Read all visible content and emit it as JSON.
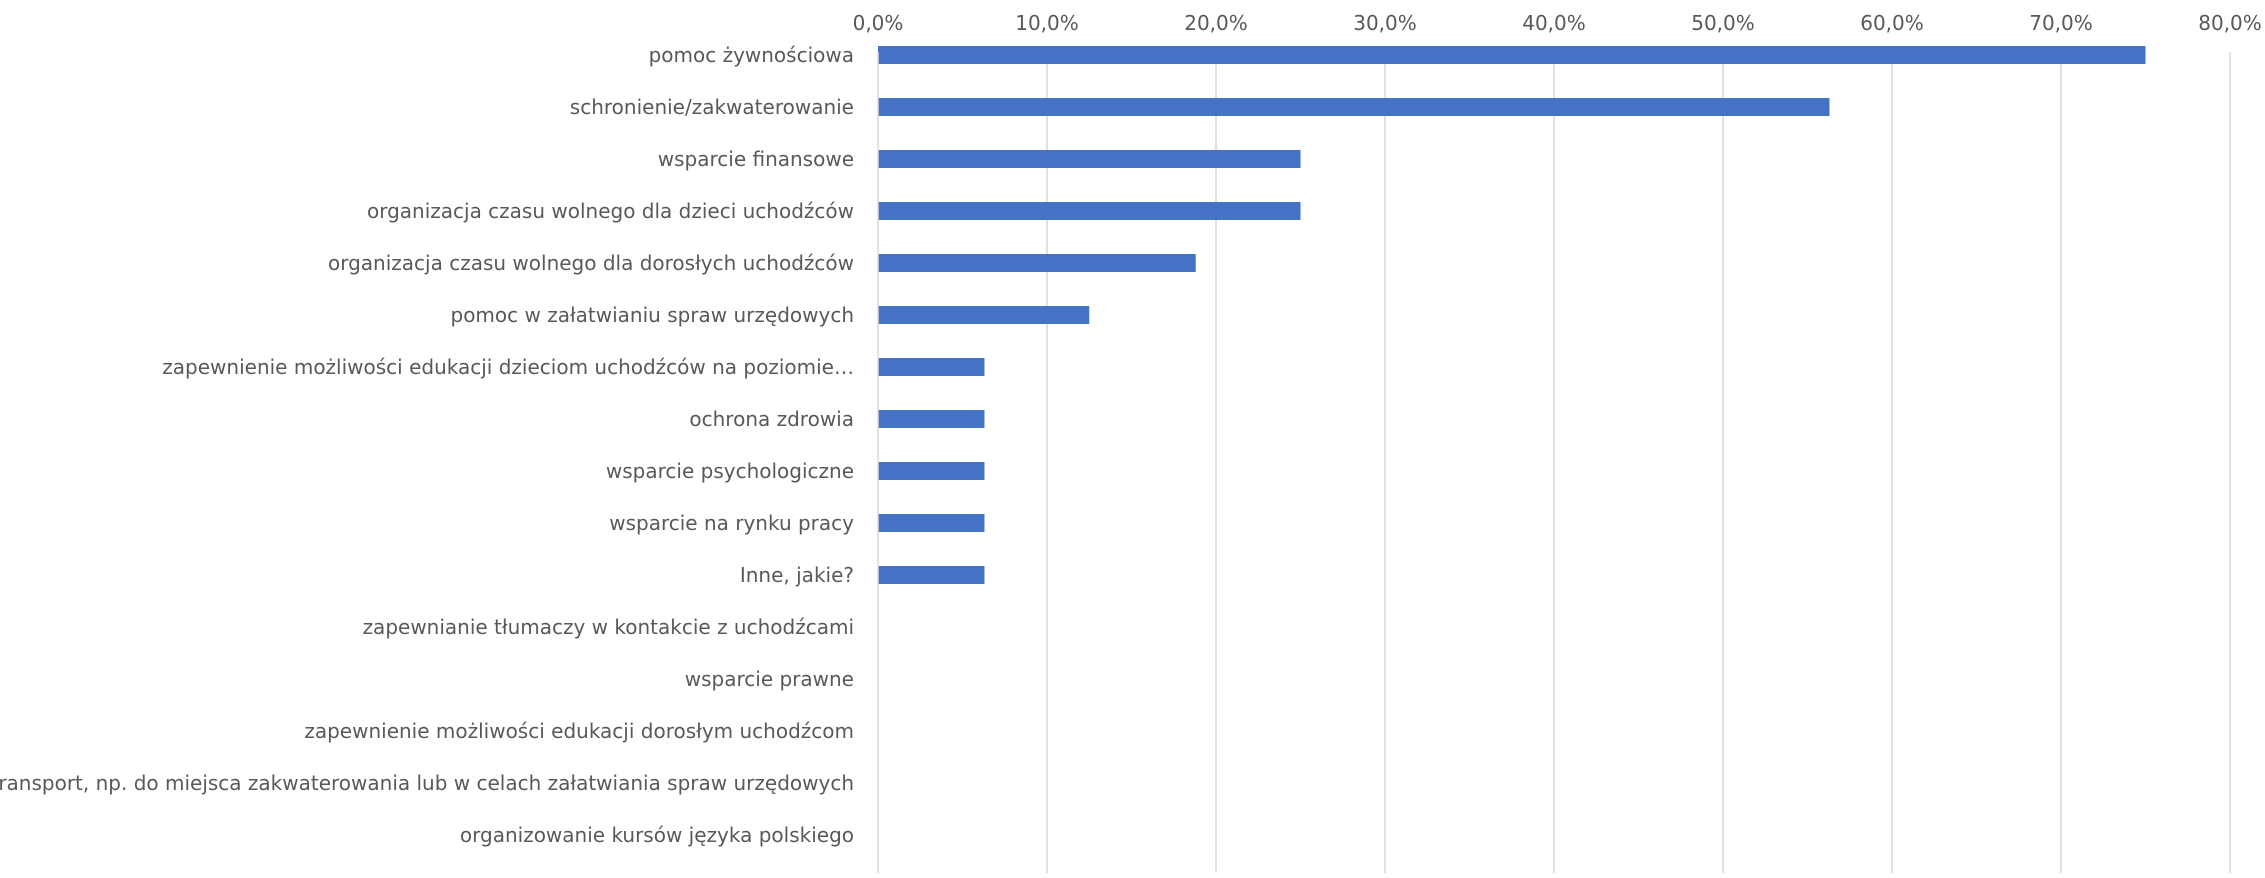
{
  "chart_data": {
    "type": "bar",
    "orientation": "horizontal",
    "title": "",
    "xlabel": "",
    "ylabel": "",
    "xlim": [
      0,
      80
    ],
    "x_ticks": [
      0,
      10,
      20,
      30,
      40,
      50,
      60,
      70,
      80
    ],
    "x_tick_labels": [
      "0,0%",
      "10,0%",
      "20,0%",
      "30,0%",
      "40,0%",
      "50,0%",
      "60,0%",
      "70,0%",
      "80,0%"
    ],
    "axis_position": "top",
    "grid": true,
    "legend": "none",
    "bar_color": "#4472C4",
    "grid_color": "#D9D9D9",
    "text_color": "#595959",
    "categories": [
      "pomoc żywnościowa",
      "schronienie/zakwaterowanie",
      "wsparcie finansowe",
      "organizacja czasu wolnego dla dzieci uchodźców",
      "organizacja czasu wolnego dla dorosłych uchodźców",
      "pomoc w załatwianiu spraw urzędowych",
      "zapewnienie możliwości edukacji dzieciom uchodźców na poziomie…",
      "ochrona zdrowia",
      "wsparcie psychologiczne",
      "wsparcie na rynku pracy",
      "Inne, jakie?",
      "zapewnianie tłumaczy w kontakcie z uchodźcami",
      "wsparcie prawne",
      "zapewnienie możliwości edukacji dorosłym uchodźcom",
      "transport, np. do miejsca zakwaterowania lub w celach załatwiania spraw urzędowych",
      "organizowanie kursów języka polskiego"
    ],
    "values": [
      75.0,
      56.3,
      25.0,
      25.0,
      18.8,
      12.5,
      6.3,
      6.3,
      6.3,
      6.3,
      6.3,
      0,
      0,
      0,
      0,
      0
    ]
  }
}
